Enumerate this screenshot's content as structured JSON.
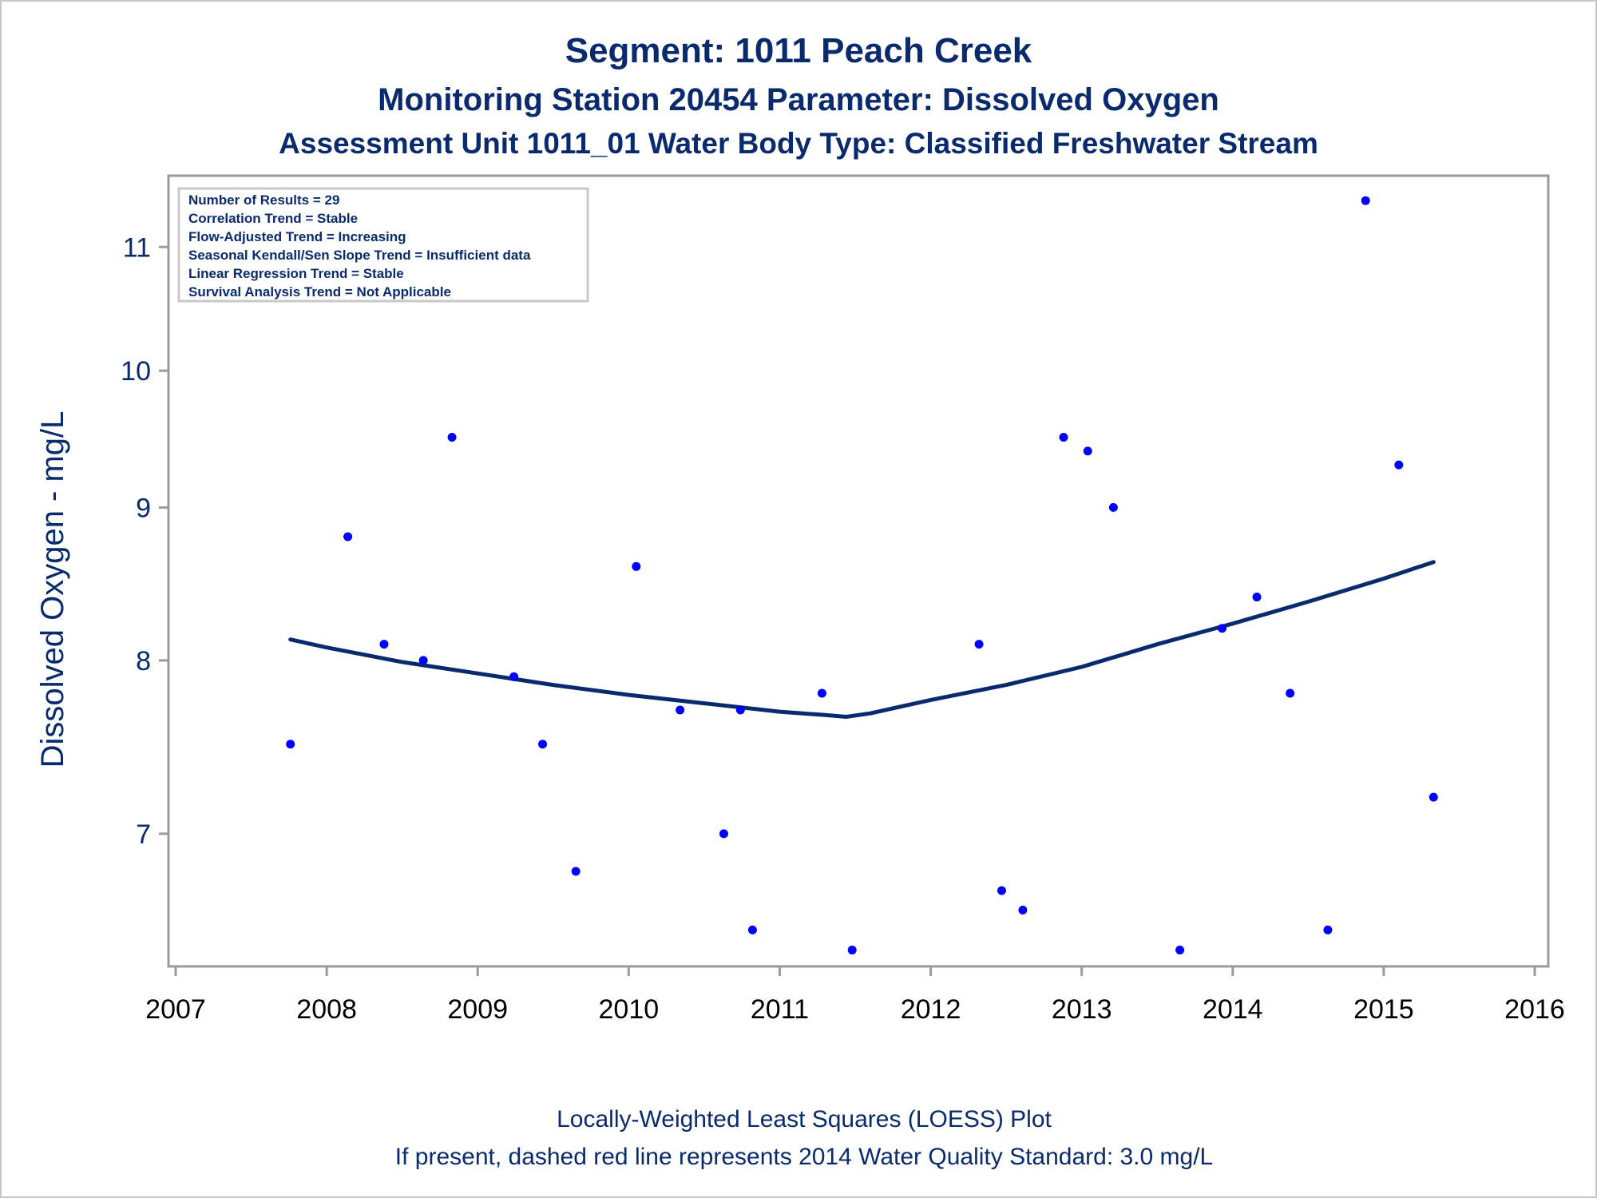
{
  "titles": {
    "line1": "Segment: 1011  Peach Creek",
    "line2": "Monitoring Station 20454 Parameter: Dissolved Oxygen",
    "line3": "Assessment Unit 1011_01   Water Body Type: Classified Freshwater Stream"
  },
  "inset": {
    "lines": [
      "Number of Results = 29",
      "Correlation Trend = Stable",
      "Flow-Adjusted Trend = Increasing",
      "Seasonal Kendall/Sen Slope Trend = Insufficient data",
      "Linear Regression Trend = Stable",
      "Survival Analysis Trend = Not Applicable"
    ]
  },
  "footer": {
    "line1": "Locally-Weighted Least Squares (LOESS) Plot",
    "line2": "If present, dashed red line represents 2014 Water Quality Standard: 3.0 mg/L"
  },
  "colors": {
    "text": "#0a2a6e",
    "points": "#0000ff",
    "loess": "#0a2a6e",
    "axis": "#9a9a9a"
  },
  "chart_data": {
    "type": "scatter",
    "ylabel": "Dissolved Oxygen - mg/L",
    "xlabel": "",
    "y_scale": "log",
    "xlim": [
      2007,
      2016
    ],
    "ylim": [
      6.32,
      11.5
    ],
    "xticks": [
      2007,
      2008,
      2009,
      2010,
      2011,
      2012,
      2013,
      2014,
      2015,
      2016
    ],
    "yticks": [
      7,
      8,
      9,
      10,
      11
    ],
    "grid": false,
    "points": [
      {
        "x": 2007.76,
        "y": 7.5
      },
      {
        "x": 2008.14,
        "y": 8.8
      },
      {
        "x": 2008.38,
        "y": 8.1
      },
      {
        "x": 2008.64,
        "y": 8.0
      },
      {
        "x": 2008.83,
        "y": 9.5
      },
      {
        "x": 2009.24,
        "y": 7.9
      },
      {
        "x": 2009.43,
        "y": 7.5
      },
      {
        "x": 2009.65,
        "y": 6.8
      },
      {
        "x": 2010.05,
        "y": 8.6
      },
      {
        "x": 2010.34,
        "y": 7.7
      },
      {
        "x": 2010.63,
        "y": 7.0
      },
      {
        "x": 2010.74,
        "y": 7.7
      },
      {
        "x": 2010.82,
        "y": 6.5
      },
      {
        "x": 2011.28,
        "y": 7.8
      },
      {
        "x": 2011.48,
        "y": 6.4
      },
      {
        "x": 2012.32,
        "y": 8.1
      },
      {
        "x": 2012.47,
        "y": 6.7
      },
      {
        "x": 2012.61,
        "y": 6.6
      },
      {
        "x": 2012.88,
        "y": 9.5
      },
      {
        "x": 2013.04,
        "y": 9.4
      },
      {
        "x": 2013.21,
        "y": 9.0
      },
      {
        "x": 2013.65,
        "y": 6.4
      },
      {
        "x": 2013.93,
        "y": 8.2
      },
      {
        "x": 2014.16,
        "y": 8.4
      },
      {
        "x": 2014.38,
        "y": 7.8
      },
      {
        "x": 2014.63,
        "y": 6.5
      },
      {
        "x": 2014.88,
        "y": 11.4
      },
      {
        "x": 2015.1,
        "y": 9.3
      },
      {
        "x": 2015.33,
        "y": 7.2
      }
    ],
    "loess": [
      {
        "x": 2007.76,
        "y": 8.13
      },
      {
        "x": 2008.0,
        "y": 8.08
      },
      {
        "x": 2008.5,
        "y": 7.99
      },
      {
        "x": 2009.0,
        "y": 7.92
      },
      {
        "x": 2009.5,
        "y": 7.85
      },
      {
        "x": 2010.0,
        "y": 7.79
      },
      {
        "x": 2010.5,
        "y": 7.74
      },
      {
        "x": 2011.0,
        "y": 7.69
      },
      {
        "x": 2011.3,
        "y": 7.67
      },
      {
        "x": 2011.44,
        "y": 7.66
      },
      {
        "x": 2011.6,
        "y": 7.68
      },
      {
        "x": 2012.0,
        "y": 7.76
      },
      {
        "x": 2012.5,
        "y": 7.85
      },
      {
        "x": 2013.0,
        "y": 7.96
      },
      {
        "x": 2013.5,
        "y": 8.1
      },
      {
        "x": 2014.0,
        "y": 8.23
      },
      {
        "x": 2014.5,
        "y": 8.37
      },
      {
        "x": 2015.0,
        "y": 8.52
      },
      {
        "x": 2015.33,
        "y": 8.63
      }
    ]
  }
}
